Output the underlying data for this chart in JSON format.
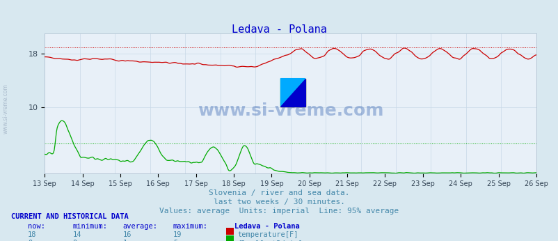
{
  "title": "Ledava - Polana",
  "title_color": "#0000cc",
  "background_color": "#d8e8f0",
  "plot_bg_color": "#e8f0f8",
  "grid_color": "#c8d8e8",
  "x_labels": [
    "13 Sep",
    "14 Sep",
    "15 Sep",
    "16 Sep",
    "17 Sep",
    "18 Sep",
    "19 Sep",
    "20 Sep",
    "21 Sep",
    "22 Sep",
    "23 Sep",
    "24 Sep",
    "25 Sep",
    "26 Sep"
  ],
  "y_ticks": [
    10,
    18
  ],
  "ylim": [
    0,
    21
  ],
  "temp_color": "#cc0000",
  "flow_color": "#00aa00",
  "temp_avg_line": 19,
  "flow_avg_line": 4.5,
  "subtitle_lines": [
    "Slovenia / river and sea data.",
    "last two weeks / 30 minutes.",
    "Values: average  Units: imperial  Line: 95% average"
  ],
  "subtitle_color": "#4488aa",
  "table_header_color": "#0000cc",
  "table_data_color": "#4488aa",
  "watermark_text": "www.si-vreme.com",
  "watermark_color": "#2255aa",
  "watermark_alpha": 0.35
}
